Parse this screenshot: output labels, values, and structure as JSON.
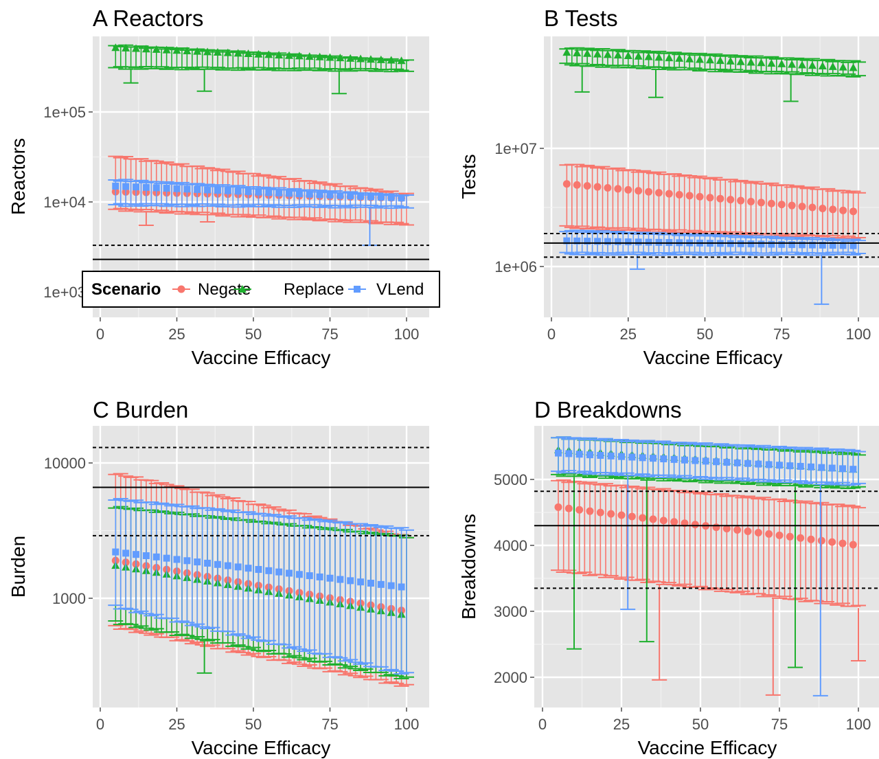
{
  "colors": {
    "Negate": "#f8766d",
    "Replace": "#1fb02f",
    "VLend": "#619cff",
    "panel_bg": "#e5e5e5",
    "grid": "#ffffff"
  },
  "chart_data": [
    {
      "id": "A",
      "type": "scatter",
      "title": "A Reactors",
      "xlabel": "Vaccine Efficacy",
      "ylabel": "Reactors",
      "xlim": [
        0,
        100
      ],
      "x_ticks": [
        "0",
        "25",
        "50",
        "75",
        "100"
      ],
      "ylog": true,
      "y_ticks": [
        "1e+03",
        "1e+04",
        "1e+05"
      ],
      "ref_solid": [
        2300
      ],
      "ref_dashed": [
        3300
      ],
      "legend": {
        "title": "Scenario",
        "entries": [
          "Negate",
          "Replace",
          "VLend"
        ],
        "position": "bottom-inside"
      },
      "series": [
        {
          "name": "Negate",
          "x_start": 5,
          "x_end": 100,
          "mid": [
            13000,
            11000
          ],
          "upper": [
            33000,
            12500
          ],
          "lower": [
            8000,
            5500
          ],
          "outliers": [
            [
              15,
              5500
            ],
            [
              35,
              6000
            ],
            [
              68,
              6500
            ]
          ]
        },
        {
          "name": "Replace",
          "x_start": 5,
          "x_end": 100,
          "mid": [
            520000,
            370000
          ],
          "upper": [
            560000,
            380000
          ],
          "lower": [
            300000,
            280000
          ],
          "outliers": [
            [
              10,
              210000
            ],
            [
              34,
              170000
            ],
            [
              78,
              160000
            ]
          ]
        },
        {
          "name": "VLend",
          "x_start": 5,
          "x_end": 100,
          "mid": [
            15000,
            11000
          ],
          "upper": [
            18000,
            12000
          ],
          "lower": [
            9000,
            8500
          ],
          "outliers": [
            [
              88,
              3300
            ]
          ]
        }
      ]
    },
    {
      "id": "B",
      "type": "scatter",
      "title": "B Tests",
      "xlabel": "Vaccine Efficacy",
      "ylabel": "Tests",
      "xlim": [
        0,
        100
      ],
      "x_ticks": [
        "0",
        "25",
        "50",
        "75",
        "100"
      ],
      "ylog": true,
      "y_ticks": [
        "1e+06",
        "1e+07"
      ],
      "ref_solid": [
        1580000
      ],
      "ref_dashed": [
        1900000,
        1200000
      ],
      "series": [
        {
          "name": "Negate",
          "x_start": 5,
          "x_end": 100,
          "mid": [
            5000000,
            2900000
          ],
          "upper": [
            7500000,
            4300000
          ],
          "lower": [
            2100000,
            1700000
          ],
          "outliers": []
        },
        {
          "name": "Replace",
          "x_start": 5,
          "x_end": 100,
          "mid": [
            65000000,
            48000000
          ],
          "upper": [
            72000000,
            55000000
          ],
          "lower": [
            50000000,
            40000000
          ],
          "outliers": [
            [
              10,
              30000000
            ],
            [
              34,
              27000000
            ],
            [
              78,
              25000000
            ]
          ]
        },
        {
          "name": "VLend",
          "x_start": 5,
          "x_end": 100,
          "mid": [
            1650000,
            1500000
          ],
          "upper": [
            2050000,
            1700000
          ],
          "lower": [
            1250000,
            1250000
          ],
          "outliers": [
            [
              28,
              950000
            ],
            [
              88,
              480000
            ]
          ]
        }
      ]
    },
    {
      "id": "C",
      "type": "scatter",
      "title": "C Burden",
      "xlabel": "Vaccine Efficacy",
      "ylabel": "Burden",
      "xlim": [
        0,
        100
      ],
      "x_ticks": [
        "0",
        "25",
        "50",
        "75",
        "100"
      ],
      "ylog": true,
      "y_ticks": [
        "1000",
        "10000"
      ],
      "ref_solid": [
        6600
      ],
      "ref_dashed": [
        13000,
        2900
      ],
      "series": [
        {
          "name": "Negate",
          "x_start": 5,
          "x_end": 100,
          "mid": [
            1900,
            800
          ],
          "upper": [
            8500,
            2900
          ],
          "lower": [
            600,
            220
          ],
          "outliers": []
        },
        {
          "name": "Replace",
          "x_start": 5,
          "x_end": 100,
          "mid": [
            1750,
            750
          ],
          "upper": [
            4800,
            2900
          ],
          "lower": [
            650,
            250
          ],
          "outliers": [
            [
              34,
              280
            ]
          ]
        },
        {
          "name": "VLend",
          "x_start": 5,
          "x_end": 100,
          "mid": [
            2200,
            1200
          ],
          "upper": [
            5500,
            3300
          ],
          "lower": [
            850,
            270
          ],
          "outliers": []
        }
      ]
    },
    {
      "id": "D",
      "type": "scatter",
      "title": "D Breakdowns",
      "xlabel": "Vaccine Efficacy",
      "ylabel": "Breakdowns",
      "xlim": [
        0,
        100
      ],
      "x_ticks": [
        "0",
        "25",
        "50",
        "75",
        "100"
      ],
      "ylog": false,
      "y_ticks": [
        "2000",
        "3000",
        "4000",
        "5000"
      ],
      "ref_solid": [
        4300
      ],
      "ref_dashed": [
        4820,
        3350
      ],
      "series": [
        {
          "name": "Negate",
          "x_start": 5,
          "x_end": 100,
          "mid": [
            4580,
            4000
          ],
          "upper": [
            5000,
            4600
          ],
          "lower": [
            3600,
            3050
          ],
          "outliers": [
            [
              37,
              1960
            ],
            [
              73,
              1730
            ],
            [
              100,
              2250
            ]
          ]
        },
        {
          "name": "Replace",
          "x_start": 5,
          "x_end": 100,
          "mid": [
            5450,
            5150
          ],
          "upper": [
            5650,
            5400
          ],
          "lower": [
            5050,
            4850
          ],
          "outliers": [
            [
              10,
              2430
            ],
            [
              33,
              2540
            ],
            [
              80,
              2150
            ]
          ]
        },
        {
          "name": "VLend",
          "x_start": 5,
          "x_end": 100,
          "mid": [
            5400,
            5150
          ],
          "upper": [
            5650,
            5450
          ],
          "lower": [
            5100,
            4900
          ],
          "outliers": [
            [
              27,
              3030
            ],
            [
              88,
              1720
            ]
          ]
        }
      ]
    }
  ]
}
